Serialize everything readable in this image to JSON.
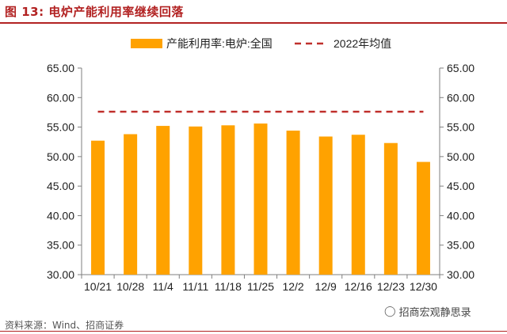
{
  "figure": {
    "title": "图 13:  电炉产能利用率继续回落",
    "source": "资料来源：Wind、招商证券",
    "watermark": "招商宏观静思录",
    "watermark_icon": "wechat-icon"
  },
  "colors": {
    "bar": "#ffa200",
    "avg_line": "#c0302c",
    "title": "#b22222",
    "axis": "#7f7f7f"
  },
  "chart_data": {
    "type": "bar",
    "categories": [
      "10/21",
      "10/28",
      "11/4",
      "11/11",
      "11/18",
      "11/25",
      "12/2",
      "12/9",
      "12/16",
      "12/23",
      "12/30"
    ],
    "series": [
      {
        "name": "产能利用率:电炉:全国",
        "type": "bar",
        "values": [
          52.7,
          53.8,
          55.2,
          55.1,
          55.3,
          55.6,
          54.4,
          53.4,
          53.7,
          52.3,
          49.1
        ]
      },
      {
        "name": "2022年均值",
        "type": "line-dashed",
        "values": [
          57.6,
          57.6,
          57.6,
          57.6,
          57.6,
          57.6,
          57.6,
          57.6,
          57.6,
          57.6,
          57.6
        ]
      }
    ],
    "ylim": [
      30,
      65
    ],
    "yticks": [
      "30.00",
      "35.00",
      "40.00",
      "45.00",
      "50.00",
      "55.00",
      "60.00",
      "65.00"
    ],
    "secondary_axis": true,
    "grid": false,
    "legend_position": "top"
  }
}
